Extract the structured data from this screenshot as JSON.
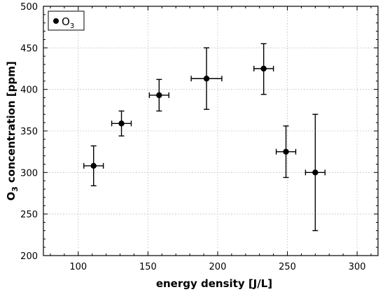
{
  "chart_data": {
    "type": "scatter",
    "xlabel": "energy density [J/L]",
    "ylabel_main": "O",
    "ylabel_sub": "3",
    "ylabel_rest": " concentration [ppm]",
    "xlim": [
      75,
      315
    ],
    "ylim": [
      200,
      500
    ],
    "x_ticks": [
      100,
      150,
      200,
      250,
      300
    ],
    "y_ticks": [
      200,
      250,
      300,
      350,
      400,
      450,
      500
    ],
    "x_minor_step": 10,
    "y_minor_step": 10,
    "grid": true,
    "legend_position": "top-left",
    "legend_label_main": "O",
    "legend_label_sub": "3",
    "marker_color": "#000000",
    "points": [
      {
        "x": 111,
        "y": 308,
        "xerr": 7,
        "yerr_low": 24,
        "yerr_high": 24
      },
      {
        "x": 131,
        "y": 359,
        "xerr": 7,
        "yerr_low": 15,
        "yerr_high": 15
      },
      {
        "x": 158,
        "y": 393,
        "xerr": 7,
        "yerr_low": 19,
        "yerr_high": 19
      },
      {
        "x": 192,
        "y": 413,
        "xerr": 11,
        "yerr_low": 37,
        "yerr_high": 37
      },
      {
        "x": 233,
        "y": 425,
        "xerr": 7,
        "yerr_low": 31,
        "yerr_high": 30
      },
      {
        "x": 249,
        "y": 325,
        "xerr": 7,
        "yerr_low": 31,
        "yerr_high": 31
      },
      {
        "x": 270,
        "y": 300,
        "xerr": 7,
        "yerr_low": 70,
        "yerr_high": 70
      }
    ]
  }
}
